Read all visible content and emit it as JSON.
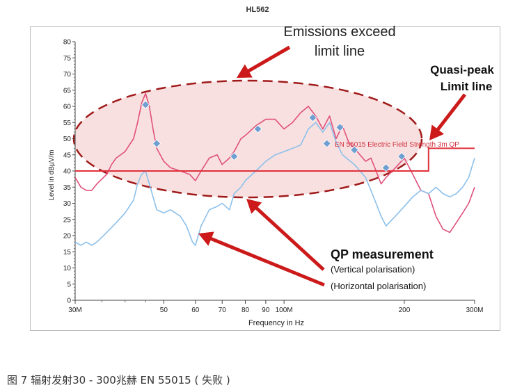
{
  "figure": {
    "title": "HL562",
    "caption": "图 7 辐射发射30 - 300兆赫 EN 55015 ( 失败 )"
  },
  "colors": {
    "vertical_trace": "#e0507a",
    "horizontal_trace": "#8cc0ea",
    "limit_line": "#e0303a",
    "qp_marker": "#6f9fd0",
    "arrow": "#cc1a1a",
    "ellipse_fill": "#f2c6c6",
    "ellipse_stroke": "#a01a1a"
  },
  "annotations": {
    "exceed_line1": "Emissions exceed",
    "exceed_line2": "limit line",
    "qp_limit_line1": "Quasi-peak",
    "qp_limit_line2": "Limit line",
    "qp_title": "QP measurement",
    "qp_vertical": "(Vertical polarisation)",
    "qp_horizontal": "(Horizontal polarisation)",
    "limit_label": "EN 55015 Electric Field Strength 3m QP"
  },
  "chart_data": {
    "type": "line",
    "xlabel": "Frequency in Hz",
    "ylabel": "Level in dBµV/m",
    "xscale": "log",
    "xlim": [
      30,
      300
    ],
    "ylim": [
      0,
      80
    ],
    "grid": false,
    "x_ticks": [
      30,
      50,
      60,
      70,
      80,
      90,
      100,
      200,
      300
    ],
    "x_tick_labels": [
      "30M",
      "50",
      "60",
      "70",
      "80",
      "90",
      "100M",
      "200",
      "300M"
    ],
    "y_ticks": [
      0,
      5,
      10,
      15,
      20,
      25,
      30,
      35,
      40,
      45,
      50,
      55,
      60,
      65,
      70,
      75,
      80
    ],
    "y_tick_labels": [
      "0",
      "5",
      "10",
      "15",
      "20",
      "25",
      "30",
      "35",
      "40",
      "45",
      "50",
      "55",
      "60",
      "65",
      "70",
      "75",
      "80"
    ],
    "limit_line": {
      "name": "EN 55015 Electric Field Strength 3m QP",
      "x": [
        30,
        230,
        230,
        300
      ],
      "y": [
        40,
        40,
        47,
        47
      ]
    },
    "series": [
      {
        "name": "Vertical polarisation",
        "x": [
          30,
          31,
          32,
          33,
          34,
          36,
          37,
          38,
          40,
          42,
          43,
          44,
          45,
          46,
          47,
          48,
          50,
          52,
          55,
          58,
          60,
          62,
          65,
          68,
          70,
          73,
          75,
          78,
          80,
          85,
          90,
          95,
          100,
          105,
          110,
          115,
          120,
          125,
          130,
          135,
          140,
          145,
          150,
          160,
          165,
          170,
          175,
          180,
          190,
          200,
          210,
          220,
          230,
          240,
          250,
          260,
          270,
          280,
          290,
          300
        ],
        "y": [
          38,
          35,
          34,
          34,
          36,
          39,
          42,
          44,
          46,
          50,
          55,
          61,
          64,
          60,
          53,
          47,
          43,
          41,
          40,
          39,
          37,
          40,
          44,
          45,
          42,
          44,
          46,
          50,
          51,
          54,
          56,
          56,
          53,
          55,
          58,
          60,
          57,
          53,
          57,
          50,
          54,
          49,
          47,
          43,
          44,
          40,
          36,
          38,
          41,
          44,
          39,
          34,
          33,
          26,
          22,
          21,
          24,
          27,
          30,
          35
        ]
      },
      {
        "name": "Horizontal polarisation",
        "x": [
          30,
          31,
          32,
          33,
          34,
          36,
          38,
          40,
          42,
          43,
          44,
          45,
          46,
          47,
          48,
          50,
          52,
          55,
          57,
          59,
          60,
          62,
          65,
          68,
          70,
          73,
          75,
          78,
          80,
          85,
          90,
          95,
          100,
          105,
          110,
          115,
          120,
          125,
          130,
          135,
          140,
          150,
          160,
          165,
          170,
          175,
          180,
          190,
          200,
          210,
          220,
          230,
          240,
          250,
          260,
          270,
          280,
          290,
          300
        ],
        "y": [
          18,
          17,
          18,
          17,
          18,
          21,
          24,
          27,
          31,
          36,
          39,
          40,
          36,
          32,
          28,
          27,
          28,
          26,
          23,
          18,
          17,
          23,
          28,
          29,
          30,
          28,
          33,
          35,
          37,
          40,
          43,
          45,
          46,
          47,
          48,
          53,
          55,
          52,
          55,
          49,
          45,
          42,
          38,
          34,
          30,
          26,
          23,
          26,
          29,
          32,
          34,
          33,
          35,
          33,
          32,
          33,
          35,
          38,
          44
        ]
      },
      {
        "name": "QP measurement",
        "type": "scatter",
        "x": [
          45,
          48,
          75,
          86,
          118,
          128,
          138,
          150,
          180,
          197
        ],
        "y": [
          60.5,
          48.5,
          44.5,
          53,
          56.5,
          48.5,
          53.5,
          46.5,
          41,
          44.5
        ]
      }
    ]
  }
}
